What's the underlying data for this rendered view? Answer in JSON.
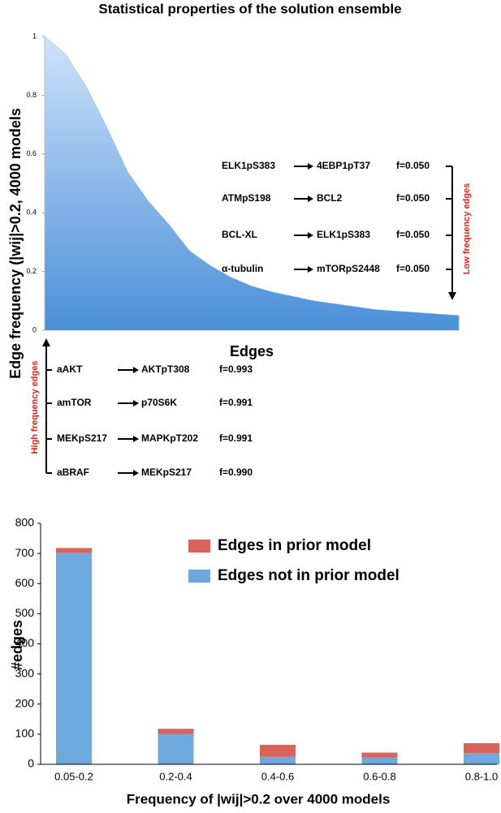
{
  "chart_data": [
    {
      "type": "area",
      "title": "Statistical properties of the solution ensemble",
      "y_label": "Edge frequency (|wij|>0.2, 4000 models",
      "x_label": "Edges",
      "values": [
        1.0,
        0.94,
        0.83,
        0.69,
        0.54,
        0.44,
        0.36,
        0.27,
        0.22,
        0.18,
        0.15,
        0.13,
        0.115,
        0.1,
        0.09,
        0.08,
        0.07,
        0.065,
        0.06,
        0.055,
        0.05
      ],
      "color": "#6fa8e8",
      "ylim": [
        0,
        1
      ],
      "yticks": [
        0,
        0.2,
        0.4,
        0.6,
        0.8,
        1
      ],
      "annotations": {
        "low_frequency_edges": {
          "label": "Low frequency edges",
          "edges": [
            {
              "source": "ELK1pS383",
              "target": "4EBP1pT37",
              "f": "f=0.050"
            },
            {
              "source": "ATMpS198",
              "target": "BCL2",
              "f": "f=0.050"
            },
            {
              "source": "BCL-XL",
              "target": "ELK1pS383",
              "f": "f=0.050"
            },
            {
              "source": "α-tubulin",
              "target": "mTORpS2448",
              "f": "f=0.050"
            }
          ]
        },
        "high_frequency_edges": {
          "label": "High frequency edges",
          "edges": [
            {
              "source": "aAKT",
              "target": "AKTpT308",
              "f": "f=0.993"
            },
            {
              "source": "amTOR",
              "target": "p70S6K",
              "f": "f=0.991"
            },
            {
              "source": "MEKpS217",
              "target": "MAPKpT202",
              "f": "f=0.991"
            },
            {
              "source": "aBRAF",
              "target": "MEKpS217",
              "f": "f=0.990"
            }
          ]
        }
      }
    },
    {
      "type": "stacked_bar",
      "y_label": "#edges",
      "x_label": "Frequency of |wij|>0.2 over 4000 models",
      "categories": [
        "0.05-0.2",
        "0.2-0.4",
        "0.4-0.6",
        "0.6-0.8",
        "0.8-1.0"
      ],
      "series": [
        {
          "name": "Edges not in prior model",
          "color": "#6fa8dc",
          "values": [
            702,
            100,
            25,
            22,
            37
          ]
        },
        {
          "name": "Edges in prior model",
          "color": "#d9625a",
          "values": [
            16,
            18,
            40,
            17,
            33
          ]
        }
      ],
      "legend_order": [
        1,
        0
      ],
      "legend": "upper right",
      "ylim": [
        0,
        800
      ],
      "yticks": [
        0,
        100,
        200,
        300,
        400,
        500,
        600,
        700,
        800
      ]
    }
  ]
}
